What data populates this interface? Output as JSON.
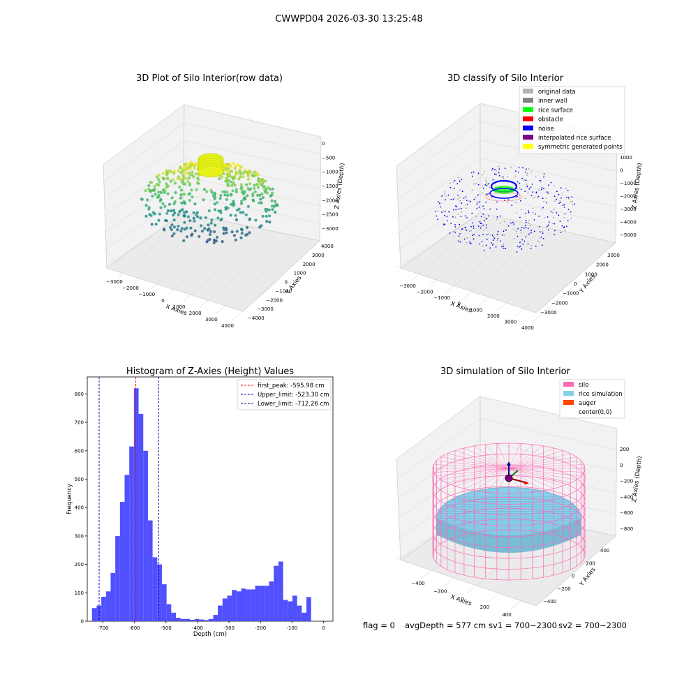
{
  "suptitle": "CWWPD04 2026-03-30 13:25:48",
  "panel_raw": {
    "title": "3D Plot of Silo Interior(row data)",
    "xlabel": "X Axies",
    "ylabel": "Y Axies",
    "zlabel": "Z Axies (Depth)",
    "xticks": [
      "−3000",
      "−2000",
      "−1000",
      "0",
      "1000",
      "2000",
      "3000",
      "4000"
    ],
    "yticks": [
      "−4000",
      "−3000",
      "−2000",
      "−1000",
      "0",
      "1000",
      "2000",
      "3000",
      "4000"
    ],
    "zticks": [
      "0",
      "−500",
      "−1000",
      "−1500",
      "−2000",
      "−2500",
      "−3000"
    ]
  },
  "panel_classify": {
    "title": "3D classify of Silo Interior",
    "xlabel": "X Axies",
    "ylabel": "Y Axies",
    "zlabel": "Z Axies (Depth)",
    "xticks": [
      "−3000",
      "−2000",
      "−1000",
      "0",
      "1000",
      "2000",
      "3000",
      "4000"
    ],
    "yticks": [
      "−3000",
      "−2000",
      "−1000",
      "0",
      "1000",
      "2000",
      "3000"
    ],
    "zticks": [
      "1000",
      "0",
      "−1000",
      "−2000",
      "−3000",
      "−4000",
      "−5000"
    ],
    "legend": [
      {
        "label": "original data",
        "color": "#b3b3b3"
      },
      {
        "label": "inner wall",
        "color": "#808080"
      },
      {
        "label": "rice surface",
        "color": "#00ff00"
      },
      {
        "label": "obstacle",
        "color": "#ff0000"
      },
      {
        "label": "noise",
        "color": "#0000ff"
      },
      {
        "label": "interpolated rice surface",
        "color": "#800080"
      },
      {
        "label": "symmetric generated points",
        "color": "#ffff00"
      }
    ]
  },
  "panel_sim": {
    "title": "3D simulation of Silo Interior",
    "xlabel": "X Axies",
    "ylabel": "Y Axies",
    "zlabel": "Z Axies (Depth)",
    "xticks": [
      "−400",
      "−200",
      "0",
      "200",
      "400"
    ],
    "yticks": [
      "−400",
      "−200",
      "0",
      "200",
      "400"
    ],
    "zticks": [
      "200",
      "0",
      "−200",
      "−400",
      "−600",
      "−800"
    ],
    "legend": [
      {
        "label": "silo",
        "color": "#ff69b4"
      },
      {
        "label": "rice simulation",
        "color": "#87ceeb"
      },
      {
        "label": "auger",
        "color": "#ff4500"
      },
      {
        "label": "center(0,0)",
        "color": ""
      }
    ]
  },
  "footer": {
    "flag": "flag = 0",
    "avg": "avgDepth = 577 cm",
    "sv1": "sv1 = 700~2300",
    "sv2": "sv2 = 700~2300"
  },
  "colors": {
    "hist_bar": "#5050ff",
    "peak_line": "#ff0000",
    "limit_line": "#0000a0",
    "silo": "#ff69b4",
    "rice": "#87ceeb"
  },
  "chart_data": {
    "type": "bar",
    "title": "Histogram of Z-Axies (Height) Values",
    "xlabel": "Depth (cm)",
    "ylabel": "Frequency",
    "xlim": [
      -750,
      30
    ],
    "ylim": [
      0,
      860
    ],
    "xticks": [
      -700,
      -600,
      -500,
      -400,
      -300,
      -200,
      -100,
      0
    ],
    "yticks": [
      0,
      100,
      200,
      300,
      400,
      500,
      600,
      700,
      800
    ],
    "bin_start": -735,
    "bin_width": 14.8,
    "values": [
      46,
      55,
      86,
      105,
      170,
      300,
      420,
      515,
      615,
      820,
      730,
      600,
      355,
      225,
      200,
      130,
      60,
      30,
      12,
      8,
      8,
      5,
      8,
      6,
      4,
      8,
      22,
      55,
      80,
      90,
      110,
      105,
      115,
      112,
      112,
      125,
      125,
      125,
      140,
      195,
      210,
      75,
      70,
      90,
      55,
      30,
      85
    ],
    "lines": [
      {
        "label": "first_peak: -595.98 cm",
        "value": -595.98,
        "color": "#ff0000"
      },
      {
        "label": "Upper_limit: -523.30 cm",
        "value": -523.3,
        "color": "#0000a0"
      },
      {
        "label": "Lower_limit: -712.26 cm",
        "value": -712.26,
        "color": "#0000a0"
      }
    ]
  }
}
